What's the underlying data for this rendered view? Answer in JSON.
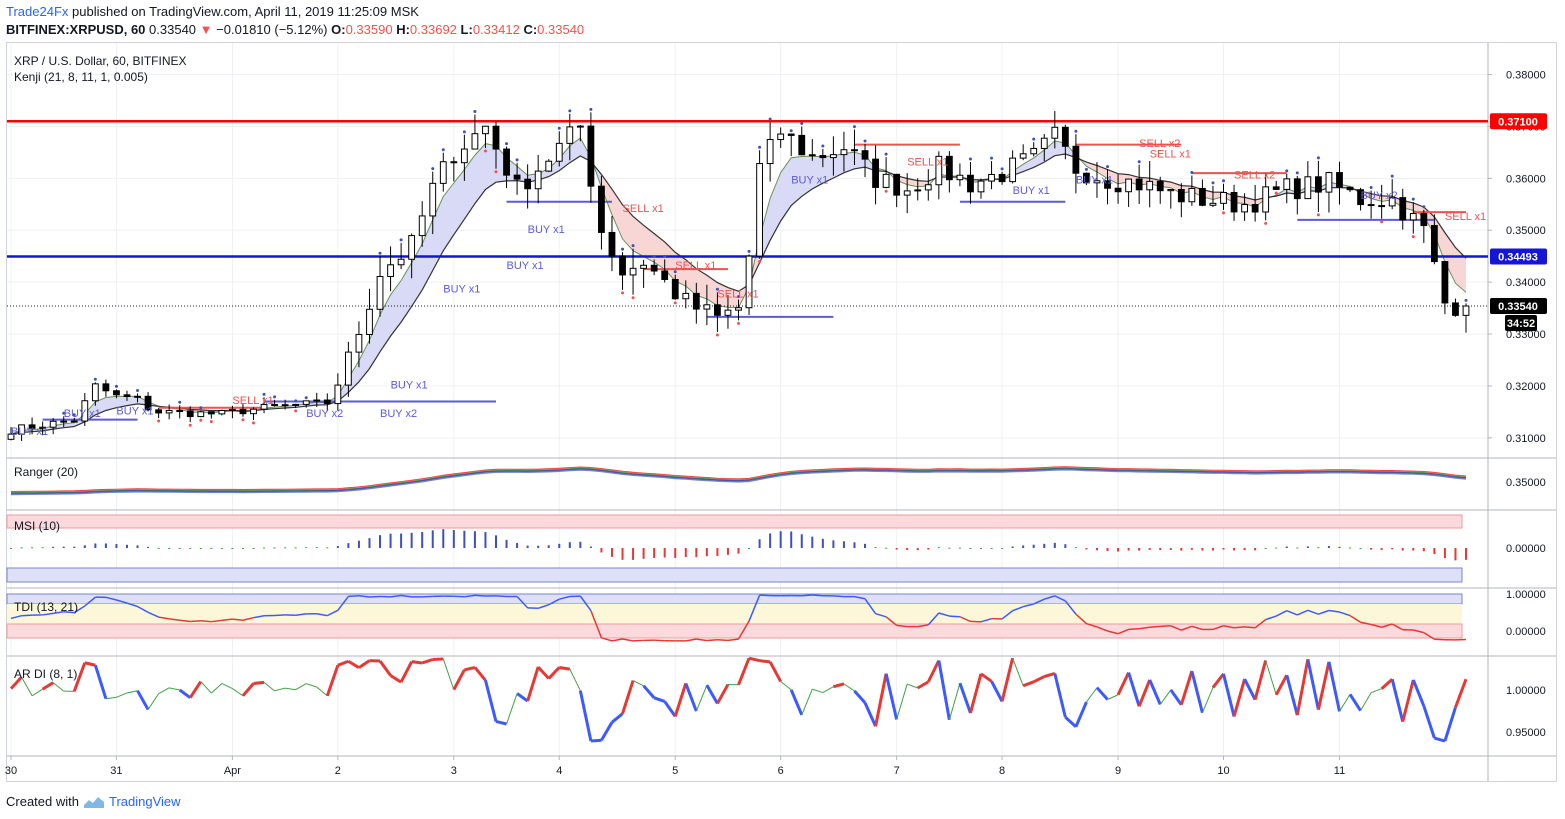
{
  "header": {
    "author": "Trade24Fx",
    "published": "published on TradingView.com, April 11, 2019 11:25:09 MSK",
    "symbol": "BITFINEX:XRPUSD, 60",
    "last": "0.33540",
    "change": "−0.01810 (−5.12%)",
    "o_label": "O:",
    "o": "0.33590",
    "h_label": "H:",
    "h": "0.33692",
    "l_label": "L:",
    "l": "0.33412",
    "c_label": "C:",
    "c": "0.33540"
  },
  "main_pane": {
    "title": "XRP / U.S. Dollar, 60, BITFINEX",
    "indicator": "Kenji (21, 8, 11, 1, 0.005)"
  },
  "panes": {
    "ranger": "Ranger (20)",
    "msi": "MSI (10)",
    "tdi": "TDI (13, 21)",
    "ardi": "AR DI (8, 1)"
  },
  "footer": {
    "created_with": "Created with",
    "brand": "TradingView"
  },
  "colors": {
    "resistance": "#ff0000",
    "support": "#1515d6",
    "buy": "#5b5bd6",
    "sell": "#f05050",
    "candle": "#000000"
  },
  "chart_data": {
    "type": "candlestick",
    "title": "XRP / U.S. Dollar, 60, BITFINEX",
    "x_ticks": [
      "30",
      "31",
      "Apr",
      "2",
      "3",
      "4",
      "5",
      "6",
      "7",
      "8",
      "9",
      "10",
      "11"
    ],
    "y_ticks": [
      "0.38000",
      "0.37000",
      "0.36000",
      "0.35000",
      "0.34000",
      "0.33000",
      "0.32000",
      "0.31000"
    ],
    "ylim": [
      0.3065,
      0.3855
    ],
    "horizontal_lines": [
      {
        "name": "resistance",
        "value": 0.371,
        "label": "0.37100"
      },
      {
        "name": "support",
        "value": 0.34493,
        "label": "0.34493"
      },
      {
        "name": "last_price",
        "value": 0.3354,
        "label": "0.33540"
      }
    ],
    "countdown": "34:52",
    "close_path": [
      [
        0,
        0.3115
      ],
      [
        6,
        0.3135
      ],
      [
        8,
        0.32
      ],
      [
        10,
        0.318
      ],
      [
        12,
        0.3175
      ],
      [
        13,
        0.3158
      ],
      [
        14,
        0.315
      ],
      [
        17,
        0.3148
      ],
      [
        20,
        0.3146
      ],
      [
        21,
        0.315
      ],
      [
        25,
        0.316
      ],
      [
        30,
        0.3168
      ],
      [
        32,
        0.325
      ],
      [
        35,
        0.342
      ],
      [
        38,
        0.347
      ],
      [
        40,
        0.358
      ],
      [
        42,
        0.365
      ],
      [
        45,
        0.37
      ],
      [
        48,
        0.358
      ],
      [
        50,
        0.362
      ],
      [
        52,
        0.366
      ],
      [
        54,
        0.37
      ],
      [
        56,
        0.35
      ],
      [
        58,
        0.342
      ],
      [
        60,
        0.344
      ],
      [
        62,
        0.34
      ],
      [
        64,
        0.336
      ],
      [
        67,
        0.333
      ],
      [
        69,
        0.335
      ],
      [
        70,
        0.345
      ],
      [
        71,
        0.362
      ],
      [
        73,
        0.369
      ],
      [
        76,
        0.364
      ],
      [
        79,
        0.366
      ],
      [
        82,
        0.36
      ],
      [
        85,
        0.358
      ],
      [
        88,
        0.362
      ],
      [
        91,
        0.359
      ],
      [
        94,
        0.361
      ],
      [
        97,
        0.364
      ],
      [
        99,
        0.368
      ],
      [
        101,
        0.362
      ],
      [
        104,
        0.36
      ],
      [
        107,
        0.359
      ],
      [
        110,
        0.357
      ],
      [
        113,
        0.356
      ],
      [
        117,
        0.355
      ],
      [
        121,
        0.358
      ],
      [
        125,
        0.359
      ],
      [
        128,
        0.356
      ],
      [
        131,
        0.356
      ],
      [
        134,
        0.35
      ],
      [
        136,
        0.336
      ],
      [
        138,
        0.3354
      ]
    ],
    "signals": [
      {
        "label": "BUY x1",
        "side": "buy",
        "i": 0,
        "price": 0.3105
      },
      {
        "label": "BUY x1",
        "side": "buy",
        "i": 5,
        "price": 0.314
      },
      {
        "label": "BUY x1",
        "side": "buy",
        "i": 10,
        "price": 0.3145
      },
      {
        "label": "SELL x1",
        "side": "sell",
        "i": 21,
        "price": 0.3165
      },
      {
        "label": "BUY x2",
        "side": "buy",
        "i": 28,
        "price": 0.314
      },
      {
        "label": "BUY x2",
        "side": "buy",
        "i": 35,
        "price": 0.314
      },
      {
        "label": "BUY x1",
        "side": "buy",
        "i": 36,
        "price": 0.3195
      },
      {
        "label": "BUY x1",
        "side": "buy",
        "i": 41,
        "price": 0.338
      },
      {
        "label": "BUY x1",
        "side": "buy",
        "i": 47,
        "price": 0.3425
      },
      {
        "label": "BUY x1",
        "side": "buy",
        "i": 49,
        "price": 0.3495
      },
      {
        "label": "SELL x1",
        "side": "sell",
        "i": 58,
        "price": 0.3535
      },
      {
        "label": "SELL x1",
        "side": "sell",
        "i": 63,
        "price": 0.3425
      },
      {
        "label": "SELL x1",
        "side": "sell",
        "i": 67,
        "price": 0.337
      },
      {
        "label": "BUY x1",
        "side": "buy",
        "i": 74,
        "price": 0.359
      },
      {
        "label": "SELL x1",
        "side": "sell",
        "i": 85,
        "price": 0.3625
      },
      {
        "label": "BUY x1",
        "side": "buy",
        "i": 95,
        "price": 0.357
      },
      {
        "label": "BUY x1",
        "side": "buy",
        "i": 101,
        "price": 0.359
      },
      {
        "label": "SELL x2",
        "side": "sell",
        "i": 107,
        "price": 0.366
      },
      {
        "label": "SELL x1",
        "side": "sell",
        "i": 108,
        "price": 0.364
      },
      {
        "label": "SELL x2",
        "side": "sell",
        "i": 116,
        "price": 0.36
      },
      {
        "label": "BUY x2",
        "side": "buy",
        "i": 128,
        "price": 0.356
      },
      {
        "label": "SELL x1",
        "side": "sell",
        "i": 136,
        "price": 0.352
      }
    ],
    "levels": [
      {
        "side": "buy",
        "from": 3,
        "to": 12,
        "price": 0.3135
      },
      {
        "side": "sell",
        "from": 14,
        "to": 24,
        "price": 0.3158
      },
      {
        "side": "buy",
        "from": 24,
        "to": 46,
        "price": 0.317
      },
      {
        "side": "buy",
        "from": 47,
        "to": 57,
        "price": 0.3555
      },
      {
        "side": "sell",
        "from": 60,
        "to": 68,
        "price": 0.3425
      },
      {
        "side": "buy",
        "from": 66,
        "to": 78,
        "price": 0.3333
      },
      {
        "side": "sell",
        "from": 80,
        "to": 90,
        "price": 0.3665
      },
      {
        "side": "buy",
        "from": 90,
        "to": 100,
        "price": 0.3555
      },
      {
        "side": "sell",
        "from": 101,
        "to": 111,
        "price": 0.3665
      },
      {
        "side": "sell",
        "from": 112,
        "to": 121,
        "price": 0.361
      },
      {
        "side": "buy",
        "from": 122,
        "to": 135,
        "price": 0.352
      },
      {
        "side": "sell",
        "from": 133,
        "to": 138,
        "price": 0.3535
      }
    ],
    "ranger": {
      "ytick": "0.35000"
    },
    "msi": {
      "ytick": "0.00000"
    },
    "tdi": {
      "yticks": [
        "1.00000",
        "0.00000"
      ]
    },
    "ardi": {
      "yticks": [
        "1.00000",
        "0.95000"
      ]
    }
  }
}
